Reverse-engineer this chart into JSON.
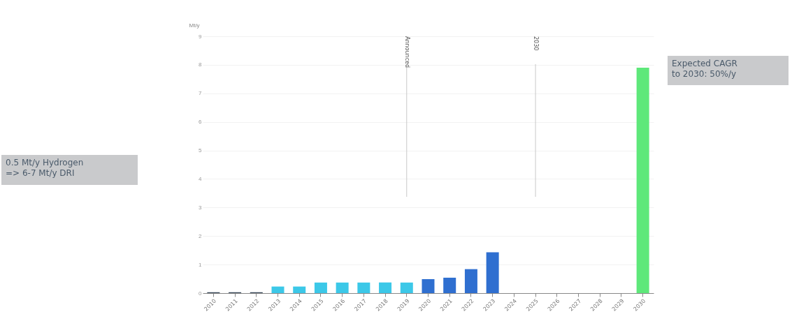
{
  "chart_data": {
    "type": "bar",
    "ylabel": "Mt/y",
    "categories": [
      "2010",
      "2011",
      "2012",
      "2013",
      "2014",
      "2015",
      "2016",
      "2017",
      "2018",
      "2019",
      "2020",
      "2021",
      "2022",
      "2023",
      "2024",
      "2025",
      "2026",
      "2027",
      "2028",
      "2029",
      "2030"
    ],
    "values": [
      0.03,
      0.03,
      0.03,
      0.23,
      0.23,
      0.37,
      0.37,
      0.37,
      0.37,
      0.37,
      0.49,
      0.54,
      0.84,
      1.43,
      0,
      0,
      0,
      0,
      0,
      0,
      7.9
    ],
    "colors": [
      "#3a4a5a",
      "#3a4a5a",
      "#3a4a5a",
      "#3cc8e8",
      "#3cc8e8",
      "#3cc8e8",
      "#3cc8e8",
      "#3cc8e8",
      "#3cc8e8",
      "#3cc8e8",
      "#2f6fd0",
      "#2f6fd0",
      "#2f6fd0",
      "#2f6fd0",
      "#2f6fd0",
      "#2f6fd0",
      "#2f6fd0",
      "#2f6fd0",
      "#2f6fd0",
      "#2f6fd0",
      "#5ee87a"
    ],
    "ylim": [
      0,
      9
    ],
    "yticks": [
      0,
      1,
      2,
      3,
      4,
      5,
      6,
      7,
      8,
      9
    ],
    "grid": "y",
    "ref_lines": [
      {
        "axis": "x",
        "value": "2019",
        "label": "Announced",
        "color": "#c8c8c8"
      },
      {
        "axis": "x",
        "value": "2025",
        "label": "2030",
        "color": "#c8c8c8"
      }
    ],
    "annotations": [
      "0.5 Mt/y Hydrogen\n=> 6-7 Mt/y DRI",
      "Expected CAGR\nto 2030: 50%/y"
    ]
  }
}
